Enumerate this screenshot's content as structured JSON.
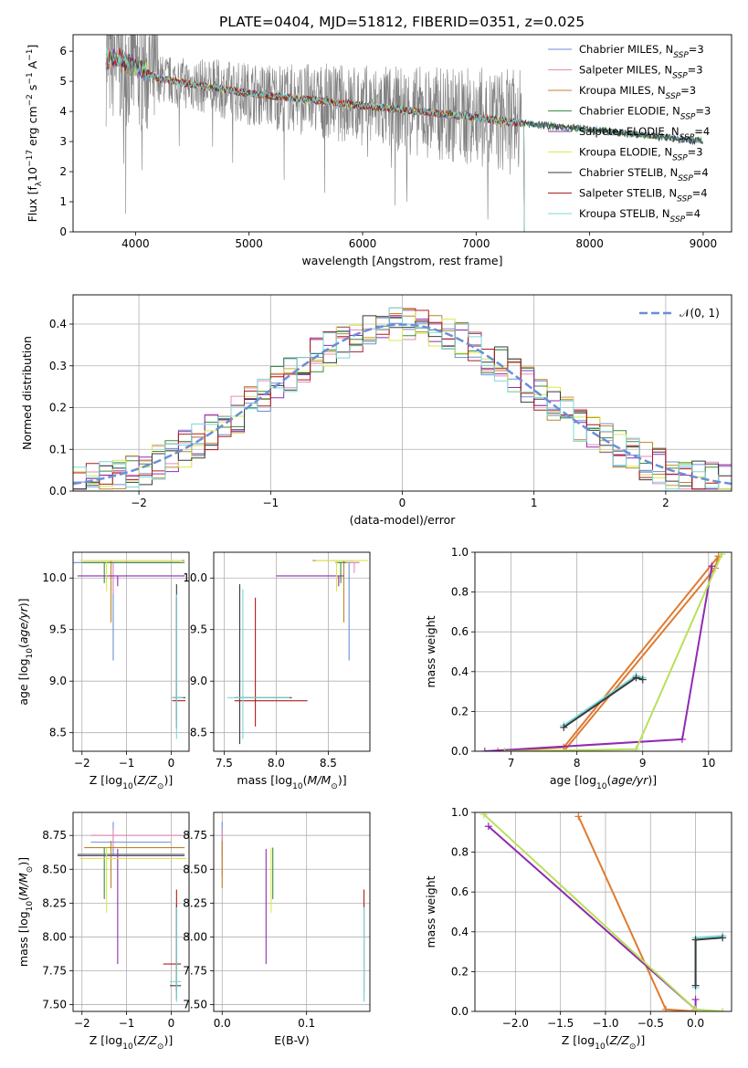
{
  "figure_title": "PLATE=0404, MJD=51812, FIBERID=0351, z=0.025",
  "colors": {
    "Chabrier MILES": "#6a8fd6",
    "Salpeter MILES": "#e58ab8",
    "Kroupa MILES": "#b8862b",
    "Chabrier ELODIE": "#3f8a3f",
    "Salpeter ELODIE": "#8f2cb0",
    "Kroupa ELODIE": "#d9e84a",
    "Chabrier STELIB": "#3a3a3a",
    "Salpeter STELIB": "#b01c1c",
    "Kroupa STELIB": "#7ad8d8",
    "data": "#808080",
    "gauss": "#6a8fd6",
    "orange": "#e07a30",
    "lime": "#b8e05a"
  },
  "chart_data": [
    {
      "id": "spectrum",
      "type": "line",
      "title": "PLATE=0404, MJD=51812, FIBERID=0351, z=0.025",
      "xlabel": "wavelength [Angstrom, rest frame]",
      "ylabel": "Flux [fλ10⁻¹⁷ erg cm⁻² s⁻¹ A⁻¹]",
      "xlim": [
        3450,
        9250
      ],
      "ylim": [
        0,
        6.55
      ],
      "xticks": [
        4000,
        5000,
        6000,
        7000,
        8000,
        9000
      ],
      "yticks": [
        0,
        1,
        2,
        3,
        4,
        5,
        6
      ],
      "legend": [
        "Chabrier MILES, N_SSP=3",
        "Salpeter MILES, N_SSP=3",
        "Kroupa MILES, N_SSP=3",
        "Chabrier ELODIE, N_SSP=3",
        "Salpeter ELODIE, N_SSP=4",
        "Kroupa ELODIE, N_SSP=3",
        "Chabrier STELIB, N_SSP=4",
        "Salpeter STELIB, N_SSP=4",
        "Kroupa STELIB, N_SSP=4"
      ],
      "legend_loc": "upper right",
      "data_x_range": [
        3740,
        9000
      ],
      "model_continuum": {
        "x": [
          3740,
          3800,
          4000,
          4200,
          4500,
          5000,
          5500,
          6000,
          6500,
          7000,
          7400,
          8000,
          8500,
          9000
        ],
        "y": [
          5.7,
          5.8,
          5.5,
          5.1,
          4.9,
          4.6,
          4.4,
          4.2,
          4.0,
          3.8,
          3.6,
          3.4,
          3.2,
          3.0
        ]
      }
    },
    {
      "id": "residuals",
      "type": "line",
      "xlabel": "(data-model)/error",
      "ylabel": "Normed distribution",
      "xlim": [
        -2.5,
        2.5
      ],
      "ylim": [
        0,
        0.47
      ],
      "xticks": [
        -2,
        -1,
        0,
        1,
        2
      ],
      "yticks": [
        0.0,
        0.1,
        0.2,
        0.3,
        0.4
      ],
      "grid": true,
      "legend": [
        "𝒩(0, 1)"
      ],
      "legend_loc": "upper right",
      "gaussian": {
        "mean": 0,
        "sigma": 1
      }
    },
    {
      "id": "age_vs_Z",
      "type": "errorbar",
      "xlabel": "Z [log₁₀(Z/Z⊙)]",
      "ylabel": "age  [log₁₀(age/yr)]",
      "xlim": [
        -2.2,
        0.4
      ],
      "ylim": [
        8.32,
        10.25
      ],
      "xticks": [
        -2,
        -1,
        0
      ],
      "yticks": [
        8.5,
        9.0,
        9.5,
        10.0
      ],
      "grid": true,
      "points": [
        {
          "model": "Chabrier MILES",
          "x": -1.3,
          "y": 10.15,
          "xe": [
            1.0,
            1.5
          ],
          "ye": [
            0.95,
            0.0
          ]
        },
        {
          "model": "Salpeter MILES",
          "x": -1.3,
          "y": 10.15,
          "xe": [
            0.5,
            1.5
          ],
          "ye": [
            0.3,
            0.0
          ]
        },
        {
          "model": "Kroupa MILES",
          "x": -1.35,
          "y": 10.17,
          "xe": [
            0.6,
            1.65
          ],
          "ye": [
            0.6,
            0.0
          ]
        },
        {
          "model": "Chabrier ELODIE",
          "x": -1.5,
          "y": 10.15,
          "xe": [
            0.5,
            1.8
          ],
          "ye": [
            0.2,
            0.0
          ]
        },
        {
          "model": "Salpeter ELODIE",
          "x": -1.2,
          "y": 10.02,
          "xe": [
            0.9,
            1.5
          ],
          "ye": [
            0.1,
            0.0
          ]
        },
        {
          "model": "Kroupa ELODIE",
          "x": -1.45,
          "y": 10.17,
          "xe": [
            0.6,
            1.7
          ],
          "ye": [
            0.3,
            0.0
          ]
        },
        {
          "model": "Chabrier STELIB",
          "x": 0.12,
          "y": 8.84,
          "xe": [
            0.1,
            0.2
          ],
          "ye": [
            0.3,
            1.1
          ]
        },
        {
          "model": "Salpeter STELIB",
          "x": 0.12,
          "y": 8.81,
          "xe": [
            0.1,
            0.2
          ],
          "ye": [
            0.2,
            1.0
          ]
        },
        {
          "model": "Kroupa STELIB",
          "x": 0.12,
          "y": 8.84,
          "xe": [
            0.1,
            0.15
          ],
          "ye": [
            0.4,
            1.0
          ]
        }
      ]
    },
    {
      "id": "age_vs_mass",
      "type": "errorbar",
      "xlabel": "mass [log₁₀(M/M⊙)]",
      "xlim": [
        7.4,
        8.9
      ],
      "ylim": [
        8.32,
        10.25
      ],
      "xticks": [
        7.5,
        8.0,
        8.5
      ],
      "yticks": [
        8.5,
        9.0,
        9.5,
        10.0
      ],
      "grid": true,
      "points": [
        {
          "model": "Chabrier MILES",
          "x": 8.7,
          "y": 10.15,
          "xe": [
            0.05,
            0.1
          ],
          "ye": [
            0.95,
            0.0
          ]
        },
        {
          "model": "Salpeter MILES",
          "x": 8.75,
          "y": 10.15,
          "xe": [
            0.15,
            0.05
          ],
          "ye": [
            0.1,
            0.0
          ]
        },
        {
          "model": "Kroupa MILES",
          "x": 8.65,
          "y": 10.17,
          "xe": [
            0.3,
            0.1
          ],
          "ye": [
            0.6,
            0.0
          ]
        },
        {
          "model": "Chabrier ELODIE",
          "x": 8.62,
          "y": 10.15,
          "xe": [
            0.05,
            0.05
          ],
          "ye": [
            0.2,
            0.0
          ]
        },
        {
          "model": "Salpeter ELODIE",
          "x": 8.6,
          "y": 10.02,
          "xe": [
            0.6,
            0.05
          ],
          "ye": [
            0.1,
            0.0
          ]
        },
        {
          "model": "Kroupa ELODIE",
          "x": 8.58,
          "y": 10.17,
          "xe": [
            0.2,
            0.3
          ],
          "ye": [
            0.3,
            0.0
          ]
        },
        {
          "model": "Chabrier STELIB",
          "x": 7.65,
          "y": 8.84,
          "xe": [
            0.05,
            0.5
          ],
          "ye": [
            0.45,
            1.1
          ]
        },
        {
          "model": "Salpeter STELIB",
          "x": 7.8,
          "y": 8.81,
          "xe": [
            0.2,
            0.5
          ],
          "ye": [
            0.25,
            1.0
          ]
        },
        {
          "model": "Kroupa STELIB",
          "x": 7.68,
          "y": 8.84,
          "xe": [
            0.15,
            0.45
          ],
          "ye": [
            0.4,
            1.05
          ]
        }
      ]
    },
    {
      "id": "weight_vs_age",
      "type": "line",
      "xlabel": "age  [log₁₀(age/yr)]",
      "ylabel": "mass weight",
      "xlim": [
        6.45,
        10.35
      ],
      "ylim": [
        0,
        1.0
      ],
      "xticks": [
        7,
        8,
        9,
        10
      ],
      "yticks": [
        0.0,
        0.2,
        0.4,
        0.6,
        0.8,
        1.0
      ],
      "grid": true,
      "series": [
        {
          "model": "Kroupa MILES",
          "color": "orange",
          "x": [
            6.8,
            7.8,
            10.15
          ],
          "y": [
            0.0,
            0.02,
            0.98
          ]
        },
        {
          "model": "Chabrier MILES",
          "color": "orange",
          "x": [
            7.8,
            10.1,
            10.15
          ],
          "y": [
            0.0,
            0.92,
            0.98
          ]
        },
        {
          "model": "Salpeter ELODIE",
          "color": "Salpeter ELODIE",
          "x": [
            6.6,
            9.6,
            10.05
          ],
          "y": [
            0.0,
            0.06,
            0.93
          ]
        },
        {
          "model": "Kroupa ELODIE",
          "color": "lime",
          "x": [
            6.9,
            8.9,
            10.2
          ],
          "y": [
            0.0,
            0.01,
            0.99
          ]
        },
        {
          "model": "Kroupa STELIB",
          "color": "Kroupa STELIB",
          "x": [
            7.8,
            8.9,
            9.0
          ],
          "y": [
            0.13,
            0.38,
            0.37
          ]
        },
        {
          "model": "Chabrier STELIB",
          "color": "Chabrier STELIB",
          "x": [
            7.8,
            8.9,
            9.0
          ],
          "y": [
            0.12,
            0.37,
            0.36
          ]
        }
      ]
    },
    {
      "id": "mass_vs_Z",
      "type": "errorbar",
      "xlabel": "Z [log₁₀(Z/Z⊙)]",
      "ylabel": "mass [log₁₀(M/M⊙)]",
      "xlim": [
        -2.2,
        0.4
      ],
      "ylim": [
        7.45,
        8.92
      ],
      "xticks": [
        -2,
        -1,
        0
      ],
      "yticks": [
        7.5,
        7.75,
        8.0,
        8.25,
        8.5,
        8.75
      ],
      "grid": true,
      "points": [
        {
          "model": "Chabrier MILES",
          "x": -1.3,
          "y": 8.7,
          "xe": [
            0.5,
            1.3
          ],
          "ye": [
            0.1,
            0.15
          ]
        },
        {
          "model": "Salpeter MILES",
          "x": -1.3,
          "y": 8.75,
          "xe": [
            0.5,
            1.6
          ],
          "ye": [
            0.1,
            0.05
          ]
        },
        {
          "model": "Kroupa MILES",
          "x": -1.35,
          "y": 8.66,
          "xe": [
            0.6,
            1.65
          ],
          "ye": [
            0.3,
            0.05
          ]
        },
        {
          "model": "Chabrier ELODIE",
          "x": -1.5,
          "y": 8.61,
          "xe": [
            0.6,
            1.8
          ],
          "ye": [
            0.33,
            0.05
          ]
        },
        {
          "model": "Salpeter ELODIE",
          "x": -1.2,
          "y": 8.6,
          "xe": [
            0.9,
            1.5
          ],
          "ye": [
            0.8,
            0.05
          ]
        },
        {
          "model": "Kroupa ELODIE",
          "x": -1.45,
          "y": 8.58,
          "xe": [
            0.6,
            1.8
          ],
          "ye": [
            0.4,
            0.08
          ]
        },
        {
          "model": "Chabrier STELIB",
          "x": 0.12,
          "y": 7.64,
          "xe": [
            0.15,
            0.1
          ],
          "ye": [
            0.1,
            0.6
          ]
        },
        {
          "model": "Salpeter STELIB",
          "x": 0.12,
          "y": 7.8,
          "xe": [
            0.3,
            0.1
          ],
          "ye": [
            0.2,
            0.55
          ]
        },
        {
          "model": "Kroupa STELIB",
          "x": 0.12,
          "y": 7.67,
          "xe": [
            0.15,
            0.1
          ],
          "ye": [
            0.15,
            0.55
          ]
        }
      ]
    },
    {
      "id": "mass_vs_ebv",
      "type": "errorbar",
      "xlabel": "E(B-V)",
      "xlim": [
        -0.01,
        0.175
      ],
      "ylim": [
        7.45,
        8.92
      ],
      "xticks": [
        0.0,
        0.1
      ],
      "yticks": [
        7.5,
        7.75,
        8.0,
        8.25,
        8.5,
        8.75
      ],
      "grid": true,
      "points": [
        {
          "model": "Chabrier MILES",
          "x": 0.0,
          "y": 8.7,
          "xe": [
            0,
            0
          ],
          "ye": [
            0.1,
            0.15
          ]
        },
        {
          "model": "Salpeter MILES",
          "x": 0.0,
          "y": 8.75,
          "xe": [
            0,
            0
          ],
          "ye": [
            0.3,
            0.05
          ]
        },
        {
          "model": "Kroupa MILES",
          "x": 0.0,
          "y": 8.66,
          "xe": [
            0,
            0
          ],
          "ye": [
            0.3,
            0.05
          ]
        },
        {
          "model": "Chabrier ELODIE",
          "x": 0.06,
          "y": 8.61,
          "xe": [
            0,
            0
          ],
          "ye": [
            0.33,
            0.05
          ]
        },
        {
          "model": "Salpeter ELODIE",
          "x": 0.052,
          "y": 8.6,
          "xe": [
            0,
            0
          ],
          "ye": [
            0.8,
            0.05
          ]
        },
        {
          "model": "Kroupa ELODIE",
          "x": 0.058,
          "y": 8.58,
          "xe": [
            0,
            0
          ],
          "ye": [
            0.4,
            0.08
          ]
        },
        {
          "model": "Chabrier STELIB",
          "x": 0.168,
          "y": 7.64,
          "xe": [
            0,
            0
          ],
          "ye": [
            0.1,
            0.6
          ]
        },
        {
          "model": "Salpeter STELIB",
          "x": 0.168,
          "y": 7.8,
          "xe": [
            0,
            0
          ],
          "ye": [
            0.2,
            0.55
          ]
        },
        {
          "model": "Kroupa STELIB",
          "x": 0.168,
          "y": 7.67,
          "xe": [
            0,
            0
          ],
          "ye": [
            0.15,
            0.55
          ]
        }
      ]
    },
    {
      "id": "weight_vs_Z",
      "type": "line",
      "xlabel": "Z [log₁₀(Z/Z⊙)]",
      "ylabel": "mass weight",
      "xlim": [
        -2.45,
        0.4
      ],
      "ylim": [
        0,
        1.0
      ],
      "xticks": [
        -2.0,
        -1.5,
        -1.0,
        -0.5,
        0.0
      ],
      "yticks": [
        0.0,
        0.2,
        0.4,
        0.6,
        0.8,
        1.0
      ],
      "grid": true,
      "series": [
        {
          "model": "Kroupa MILES",
          "color": "orange",
          "x": [
            -1.3,
            -0.33,
            0.0
          ],
          "y": [
            0.98,
            0.01,
            0.0
          ]
        },
        {
          "model": "Salpeter ELODIE",
          "color": "Salpeter ELODIE",
          "x": [
            -2.3,
            0.0,
            0.0
          ],
          "y": [
            0.93,
            0.01,
            0.06
          ]
        },
        {
          "model": "Kroupa ELODIE",
          "color": "lime",
          "x": [
            -2.35,
            0.0,
            0.3
          ],
          "y": [
            0.99,
            0.01,
            0.0
          ]
        },
        {
          "model": "Kroupa STELIB",
          "color": "Kroupa STELIB",
          "x": [
            0.0,
            0.0,
            0.3
          ],
          "y": [
            0.12,
            0.37,
            0.38
          ]
        },
        {
          "model": "Chabrier STELIB",
          "color": "Chabrier STELIB",
          "x": [
            0.0,
            0.0,
            0.3
          ],
          "y": [
            0.13,
            0.36,
            0.37
          ]
        }
      ]
    }
  ]
}
